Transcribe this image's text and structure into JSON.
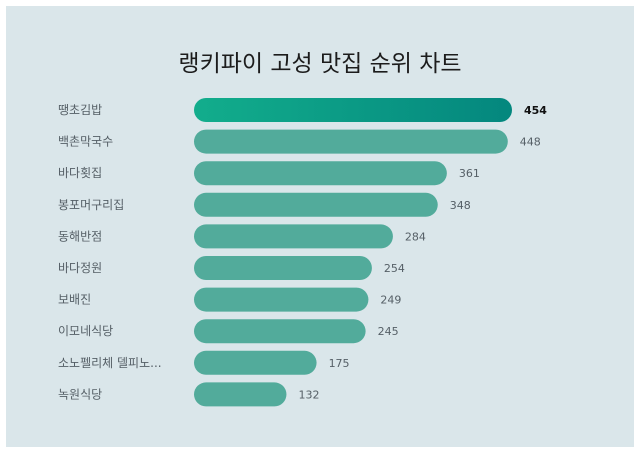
{
  "chart_data": {
    "type": "bar",
    "orientation": "horizontal",
    "title": "랭키파이 고성 맛집 순위 차트",
    "categories": [
      "땡초김밥",
      "백촌막국수",
      "바다횟집",
      "봉포머구리집",
      "동해반점",
      "바다정원",
      "보배진",
      "이모네식당",
      "소노펠리체 델피노...",
      "녹원식당"
    ],
    "values": [
      454,
      448,
      361,
      348,
      284,
      254,
      249,
      245,
      175,
      132
    ],
    "xlim": [
      0,
      454
    ],
    "grid": false,
    "colors": {
      "bar": "#52ab9b",
      "top_bar_start": "#12ad8c",
      "top_bar_end": "#04877e",
      "background": "#dae6ea"
    }
  }
}
